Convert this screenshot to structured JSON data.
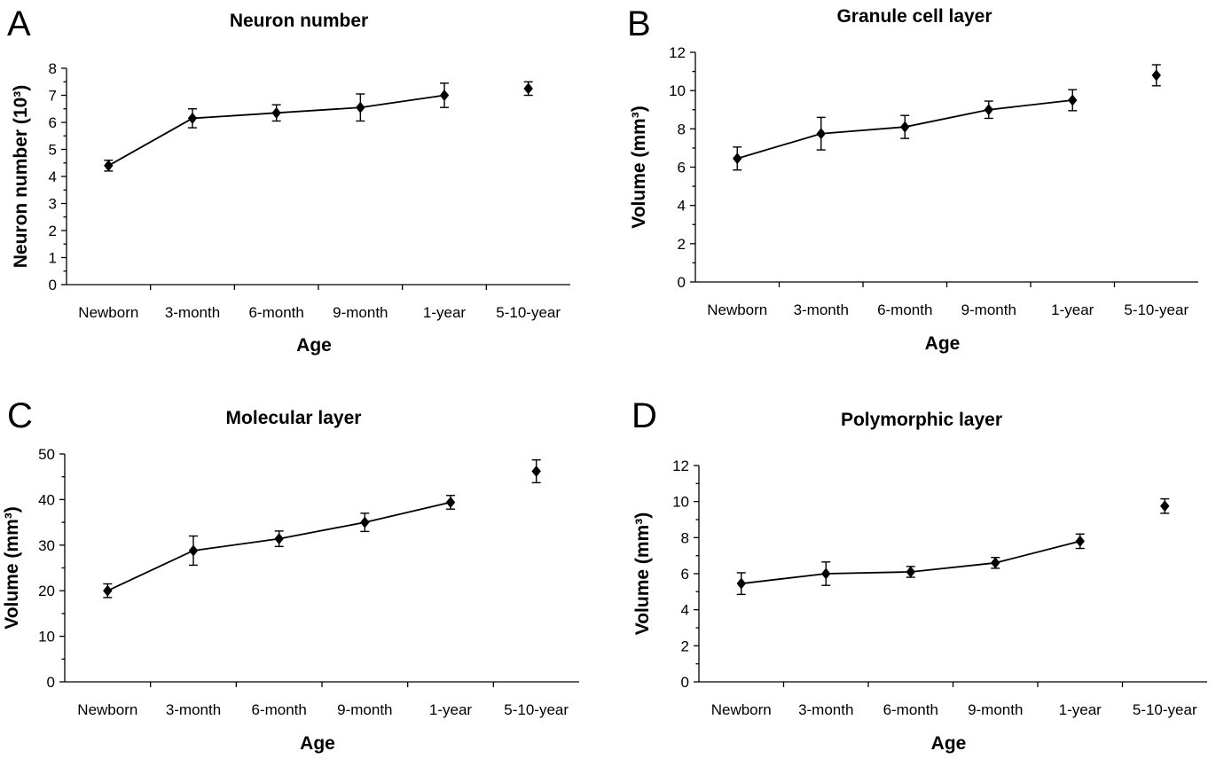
{
  "chart_data": [
    {
      "panel": "A",
      "type": "line",
      "title": "Neuron number",
      "xlabel": "Age",
      "ylabel": "Neuron number (10³)",
      "categories": [
        "Newborn",
        "3-month",
        "6-month",
        "9-month",
        "1-year",
        "5-10-year"
      ],
      "ylim": [
        0,
        8
      ],
      "yticks": [
        0,
        1,
        2,
        3,
        4,
        5,
        6,
        7,
        8
      ],
      "minor_ticks": true,
      "series": [
        {
          "values": [
            4.4,
            6.15,
            6.35,
            6.55,
            7.0,
            7.25
          ],
          "errors": [
            0.2,
            0.35,
            0.3,
            0.5,
            0.45,
            0.25
          ],
          "connected_through_index": 4
        }
      ]
    },
    {
      "panel": "B",
      "type": "line",
      "title": "Granule cell layer",
      "xlabel": "Age",
      "ylabel": "Volume (mm³)",
      "categories": [
        "Newborn",
        "3-month",
        "6-month",
        "9-month",
        "1-year",
        "5-10-year"
      ],
      "ylim": [
        0,
        12
      ],
      "yticks": [
        0,
        2,
        4,
        6,
        8,
        10,
        12
      ],
      "minor_ticks": true,
      "series": [
        {
          "values": [
            6.45,
            7.75,
            8.1,
            9.0,
            9.5,
            10.8
          ],
          "errors": [
            0.6,
            0.85,
            0.6,
            0.45,
            0.55,
            0.55
          ],
          "connected_through_index": 4
        }
      ]
    },
    {
      "panel": "C",
      "type": "line",
      "title": "Molecular layer",
      "xlabel": "Age",
      "ylabel": "Volume (mm³)",
      "categories": [
        "Newborn",
        "3-month",
        "6-month",
        "9-month",
        "1-year",
        "5-10-year"
      ],
      "ylim": [
        0,
        50
      ],
      "yticks": [
        0,
        10,
        20,
        30,
        40,
        50
      ],
      "minor_ticks": true,
      "series": [
        {
          "values": [
            20.0,
            28.8,
            31.4,
            35.0,
            39.4,
            46.2
          ],
          "errors": [
            1.5,
            3.2,
            1.7,
            2.0,
            1.5,
            2.5
          ],
          "connected_through_index": 4
        }
      ]
    },
    {
      "panel": "D",
      "type": "line",
      "title": "Polymorphic layer",
      "xlabel": "Age",
      "ylabel": "Volume (mm³)",
      "categories": [
        "Newborn",
        "3-month",
        "6-month",
        "9-month",
        "1-year",
        "5-10-year"
      ],
      "ylim": [
        0,
        12
      ],
      "yticks": [
        0,
        2,
        4,
        6,
        8,
        10,
        12
      ],
      "minor_ticks": true,
      "series": [
        {
          "values": [
            5.45,
            6.0,
            6.1,
            6.6,
            7.8,
            9.75
          ],
          "errors": [
            0.6,
            0.65,
            0.3,
            0.3,
            0.4,
            0.4
          ],
          "connected_through_index": 4
        }
      ]
    }
  ]
}
